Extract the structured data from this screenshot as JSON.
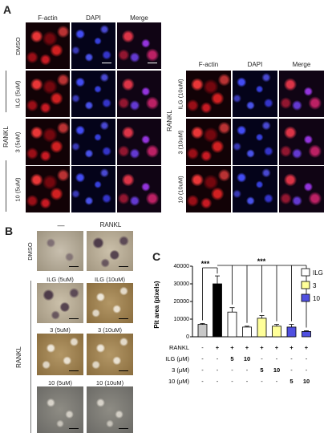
{
  "panelA": {
    "letter": "A",
    "left_headers": [
      "F-actin",
      "DAPI",
      "Merge"
    ],
    "right_headers": [
      "F-actin",
      "DAPI",
      "Merge"
    ],
    "left_rows": [
      "DMSO",
      "ILG (5uM)",
      "3 (5uM)",
      "10 (5uM)"
    ],
    "right_rows": [
      "ILG (10uM)",
      "3 (10uM)",
      "10 (10uM)"
    ],
    "rankl": "RANKL"
  },
  "panelB": {
    "letter": "B",
    "col_headers": [
      "—",
      "RANKL"
    ],
    "dmso": "DMSO",
    "rankl": "RANKL",
    "labels": [
      "ILG (5uM)",
      "ILG (10uM)",
      "3 (5uM)",
      "3 (10uM)",
      "10 (5uM)",
      "10 (10uM)"
    ]
  },
  "panelC": {
    "letter": "C",
    "chart_data": {
      "type": "bar",
      "ylabel": "Pit area (pixels)",
      "ylim": [
        0,
        40000
      ],
      "yticks": [
        "0",
        "10000",
        "20000",
        "30000",
        "40000"
      ],
      "values": [
        7000,
        30000,
        14000,
        5500,
        10500,
        6000,
        5500,
        3000
      ],
      "errors": [
        500,
        4500,
        2500,
        500,
        1500,
        1000,
        1500,
        400
      ],
      "bar_colors": [
        "#c8c8c8",
        "#000000",
        "#ffffff",
        "#ffffff",
        "#ffff99",
        "#ffff99",
        "#4f4fe0",
        "#4f4fe0"
      ],
      "significance": [
        "***",
        "***"
      ],
      "legend": [
        {
          "name": "ILG",
          "color": "#ffffff"
        },
        {
          "name": "3",
          "color": "#ffff99"
        },
        {
          "name": "10",
          "color": "#4f4fe0"
        }
      ],
      "table": {
        "row_labels": [
          "RANKL",
          "ILG (μM)",
          "3 (μM)",
          "10 (μM)"
        ],
        "rows": [
          [
            "-",
            "+",
            "+",
            "+",
            "+",
            "+",
            "+",
            "+"
          ],
          [
            "-",
            "-",
            "5",
            "10",
            "-",
            "-",
            "-",
            "-"
          ],
          [
            "-",
            "-",
            "-",
            "-",
            "5",
            "10",
            "-",
            "-"
          ],
          [
            "-",
            "-",
            "-",
            "-",
            "-",
            "-",
            "5",
            "10"
          ]
        ]
      }
    }
  }
}
